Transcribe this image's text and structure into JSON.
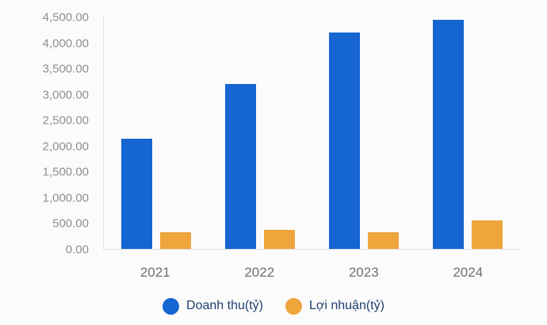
{
  "chart_data": {
    "type": "bar",
    "title": "",
    "xlabel": "",
    "ylabel": "",
    "categories": [
      "2021",
      "2022",
      "2023",
      "2024"
    ],
    "series": [
      {
        "name": "Doanh thu(tỷ)",
        "color": "#1565d2",
        "values": [
          2150,
          3200,
          4200,
          4450
        ]
      },
      {
        "name": "Lợi nhuận(tỷ)",
        "color": "#eea53c",
        "values": [
          330,
          370,
          330,
          560
        ]
      }
    ],
    "ylim": [
      0,
      4500
    ],
    "ytick_labels": [
      "4,500.00",
      "4,000.00",
      "3,500.00",
      "3,000.00",
      "2,500.00",
      "2,000.00",
      "1,500.00",
      "1,000.00",
      "500.00",
      "0.00"
    ],
    "grid": false,
    "legend_position": "bottom"
  },
  "colors": {
    "background": "#fbfbfb",
    "axis_line": "#dcdcdc",
    "tick_text": "#8f8f8f",
    "category_text": "#6f6f6f",
    "legend_text": "#1f3f6e"
  }
}
